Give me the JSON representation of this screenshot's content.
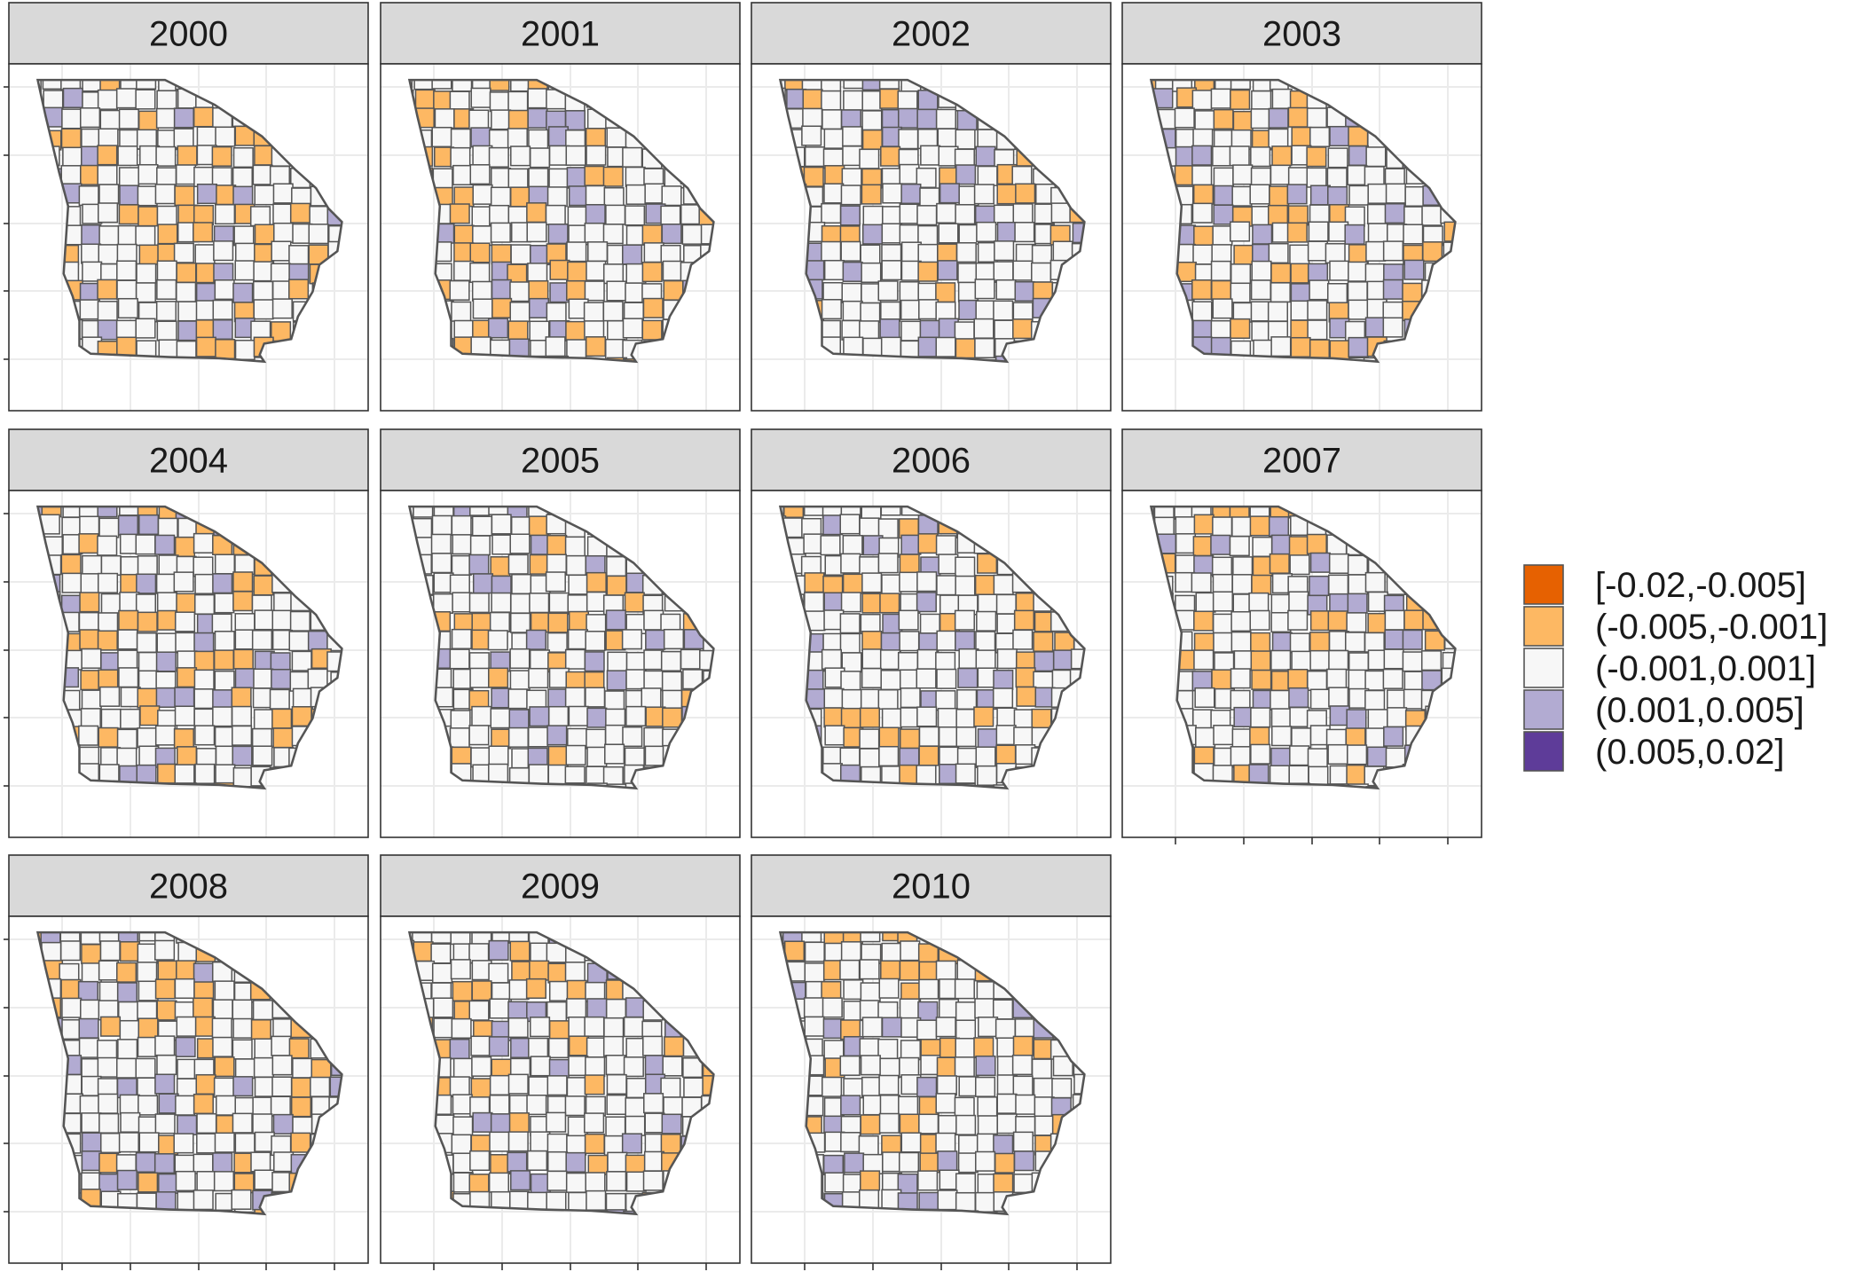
{
  "figure": {
    "panels": [
      {
        "year": "2000"
      },
      {
        "year": "2001"
      },
      {
        "year": "2002"
      },
      {
        "year": "2003"
      },
      {
        "year": "2004"
      },
      {
        "year": "2005"
      },
      {
        "year": "2006"
      },
      {
        "year": "2007"
      },
      {
        "year": "2008"
      },
      {
        "year": "2009"
      },
      {
        "year": "2010"
      }
    ],
    "legend": {
      "items": [
        {
          "label": "[-0.02,-0.005]",
          "color": "#e66101"
        },
        {
          "label": "(-0.005,-0.001]",
          "color": "#fdb863"
        },
        {
          "label": "(-0.001,0.001]",
          "color": "#f7f7f7"
        },
        {
          "label": "(0.001,0.005]",
          "color": "#b2abd2"
        },
        {
          "label": "(0.005,0.02]",
          "color": "#5e3c99"
        }
      ]
    },
    "county_outline_color": "#555555",
    "panel_border_color": "#333333",
    "strip_fill": "#d9d9d9",
    "grid_color": "#ebebeb"
  }
}
